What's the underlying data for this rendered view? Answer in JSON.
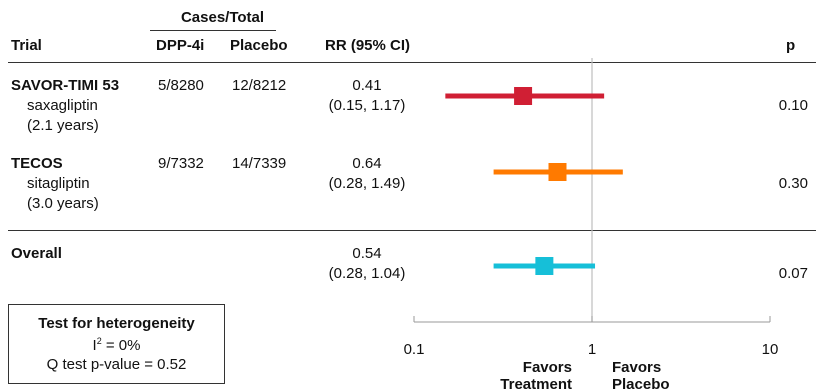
{
  "header": {
    "group_label": "Cases/Total",
    "col_trial": "Trial",
    "col_dpp4i": "DPP-4i",
    "col_placebo": "Placebo",
    "col_rr": "RR (95% CI)",
    "col_p": "p"
  },
  "heterogeneity": {
    "title": "Test for heterogeneity",
    "i2_label": "I",
    "i2_sup": "2",
    "i2_value": " = 0%",
    "q_test": "Q test p-value = 0.52"
  },
  "chart_data": {
    "type": "forest",
    "x_scale": "log",
    "xlim": [
      0.1,
      10
    ],
    "reference_line": 1,
    "x_ticks": [
      {
        "value": 0.1,
        "label": "0.1"
      },
      {
        "value": 1,
        "label": "1"
      },
      {
        "value": 10,
        "label": "10"
      }
    ],
    "favors_left": [
      "Favors",
      "Treatment"
    ],
    "favors_right": [
      "Favors",
      "Placebo"
    ],
    "rows": [
      {
        "trial": "SAVOR-TIMI 53",
        "drug": "saxagliptin",
        "duration": "(2.1 years)",
        "dpp4i": "5/8280",
        "placebo": "12/8212",
        "rr_text": "0.41",
        "ci_text": "(0.15, 1.17)",
        "p": "0.10",
        "rr": 0.41,
        "lo": 0.15,
        "hi": 1.17,
        "color": "#d01f34"
      },
      {
        "trial": "TECOS",
        "drug": "sitagliptin",
        "duration": "(3.0 years)",
        "dpp4i": "9/7332",
        "placebo": "14/7339",
        "rr_text": "0.64",
        "ci_text": "(0.28, 1.49)",
        "p": "0.30",
        "rr": 0.64,
        "lo": 0.28,
        "hi": 1.49,
        "color": "#ff7a00"
      },
      {
        "trial": "Overall",
        "drug": "",
        "duration": "",
        "dpp4i": "",
        "placebo": "",
        "rr_text": "0.54",
        "ci_text": "(0.28, 1.04)",
        "p": "0.07",
        "rr": 0.54,
        "lo": 0.28,
        "hi": 1.04,
        "color": "#16bfd8"
      }
    ]
  }
}
